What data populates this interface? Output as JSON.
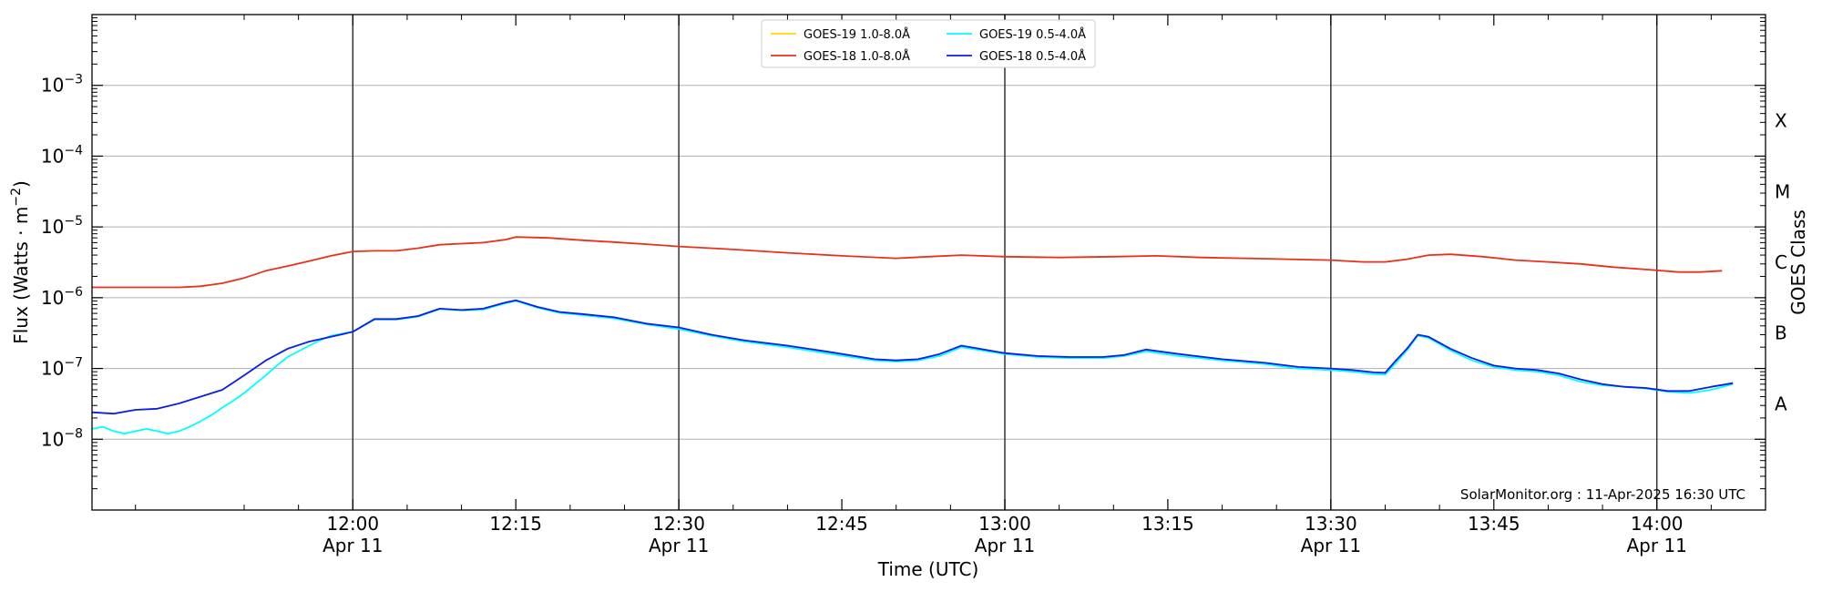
{
  "chart_data": {
    "type": "line",
    "xlabel": "Time (UTC)",
    "ylabel": "Flux (Watts · m",
    "ylabel_exp": "−2",
    "ylabel_close": ")",
    "y_scale": "log",
    "xlim": [
      "11:36",
      "14:10"
    ],
    "ylim_exp": [
      -9,
      -2
    ],
    "grid": "horizontal",
    "legend_placement": "top-center",
    "x_ticks": [
      {
        "time": "12:00",
        "label": "12:00",
        "sub": "Apr 11",
        "vline": true
      },
      {
        "time": "12:15",
        "label": "12:15",
        "sub": "",
        "vline": false
      },
      {
        "time": "12:30",
        "label": "12:30",
        "sub": "Apr 11",
        "vline": true
      },
      {
        "time": "12:45",
        "label": "12:45",
        "sub": "",
        "vline": false
      },
      {
        "time": "13:00",
        "label": "13:00",
        "sub": "Apr 11",
        "vline": true
      },
      {
        "time": "13:15",
        "label": "13:15",
        "sub": "",
        "vline": false
      },
      {
        "time": "13:30",
        "label": "13:30",
        "sub": "Apr 11",
        "vline": true
      },
      {
        "time": "13:45",
        "label": "13:45",
        "sub": "",
        "vline": false
      },
      {
        "time": "14:00",
        "label": "14:00",
        "sub": "Apr 11",
        "vline": true
      }
    ],
    "y_ticks": [
      {
        "exp": -8,
        "base": "10",
        "sup": "−8"
      },
      {
        "exp": -7,
        "base": "10",
        "sup": "−7"
      },
      {
        "exp": -6,
        "base": "10",
        "sup": "−6"
      },
      {
        "exp": -5,
        "base": "10",
        "sup": "−5"
      },
      {
        "exp": -4,
        "base": "10",
        "sup": "−4"
      },
      {
        "exp": -3,
        "base": "10",
        "sup": "−3"
      }
    ],
    "right_axis": {
      "title": "GOES Class",
      "classes": [
        {
          "label": "A",
          "exp": -8
        },
        {
          "label": "B",
          "exp": -7
        },
        {
          "label": "C",
          "exp": -6
        },
        {
          "label": "M",
          "exp": -5
        },
        {
          "label": "X",
          "exp": -4
        }
      ]
    },
    "series": [
      {
        "name": "GOES-19 1.0-8.0Å",
        "color": "#ffd700",
        "x": [],
        "y": []
      },
      {
        "name": "GOES-19 0.5-4.0Å",
        "color": "#00ffff",
        "x": [
          "11:36",
          "11:37",
          "11:38",
          "11:39",
          "11:40",
          "11:41",
          "11:42",
          "11:43",
          "11:44",
          "11:45",
          "11:46",
          "11:47",
          "11:48",
          "11:49",
          "11:50",
          "11:51",
          "11:52",
          "11:53",
          "11:54",
          "11:55",
          "11:56",
          "11:57",
          "11:58",
          "11:59",
          "12:00",
          "12:02",
          "12:04",
          "12:06",
          "12:08",
          "12:10",
          "12:12",
          "12:14",
          "12:15",
          "12:17",
          "12:19",
          "12:21",
          "12:24",
          "12:27",
          "12:30",
          "12:33",
          "12:36",
          "12:40",
          "12:44",
          "12:48",
          "12:50",
          "12:52",
          "12:54",
          "12:56",
          "13:00",
          "13:03",
          "13:06",
          "13:09",
          "13:11",
          "13:13",
          "13:16",
          "13:20",
          "13:24",
          "13:27",
          "13:30",
          "13:32",
          "13:34",
          "13:35",
          "13:36",
          "13:37",
          "13:38",
          "13:39",
          "13:41",
          "13:43",
          "13:45",
          "13:47",
          "13:49",
          "13:51",
          "13:53",
          "13:55",
          "13:57",
          "13:59",
          "14:01",
          "14:03",
          "14:05",
          "14:07"
        ],
        "y": [
          1.4e-08,
          1.5e-08,
          1.3e-08,
          1.2e-08,
          1.3e-08,
          1.4e-08,
          1.3e-08,
          1.2e-08,
          1.3e-08,
          1.5e-08,
          1.8e-08,
          2.2e-08,
          2.8e-08,
          3.5e-08,
          4.5e-08,
          6e-08,
          8e-08,
          1.1e-07,
          1.45e-07,
          1.75e-07,
          2.1e-07,
          2.5e-07,
          2.9e-07,
          3.1e-07,
          3.3e-07,
          4.9e-07,
          4.9e-07,
          5.4e-07,
          6.9e-07,
          6.6e-07,
          6.8e-07,
          8.3e-07,
          9e-07,
          7.2e-07,
          6.1e-07,
          5.7e-07,
          5.1e-07,
          4.2e-07,
          3.6e-07,
          2.9e-07,
          2.4e-07,
          2e-07,
          1.6e-07,
          1.3e-07,
          1.25e-07,
          1.3e-07,
          1.5e-07,
          2e-07,
          1.6e-07,
          1.45e-07,
          1.4e-07,
          1.4e-07,
          1.5e-07,
          1.75e-07,
          1.5e-07,
          1.3e-07,
          1.15e-07,
          1e-07,
          9.5e-08,
          9e-08,
          8.3e-08,
          8.2e-08,
          1.2e-07,
          1.8e-07,
          2.9e-07,
          2.7e-07,
          1.8e-07,
          1.3e-07,
          1.05e-07,
          9.5e-08,
          9e-08,
          8e-08,
          6.5e-08,
          5.8e-08,
          5.5e-08,
          5.2e-08,
          4.7e-08,
          4.5e-08,
          5e-08,
          6e-08
        ]
      },
      {
        "name": "GOES-18 1.0-8.0Å",
        "color": "#e8311a",
        "x": [
          "11:36",
          "11:38",
          "11:40",
          "11:42",
          "11:44",
          "11:46",
          "11:48",
          "11:50",
          "11:52",
          "11:54",
          "11:56",
          "11:58",
          "12:00",
          "12:02",
          "12:04",
          "12:06",
          "12:08",
          "12:10",
          "12:12",
          "12:14",
          "12:15",
          "12:18",
          "12:21",
          "12:24",
          "12:27",
          "12:30",
          "12:35",
          "12:40",
          "12:45",
          "12:50",
          "12:53",
          "12:56",
          "13:00",
          "13:05",
          "13:10",
          "13:14",
          "13:18",
          "13:22",
          "13:26",
          "13:30",
          "13:33",
          "13:35",
          "13:37",
          "13:39",
          "13:41",
          "13:44",
          "13:47",
          "13:50",
          "13:53",
          "13:56",
          "13:59",
          "14:02",
          "14:04",
          "14:06"
        ],
        "y": [
          1.4e-06,
          1.4e-06,
          1.4e-06,
          1.4e-06,
          1.4e-06,
          1.45e-06,
          1.6e-06,
          1.9e-06,
          2.4e-06,
          2.8e-06,
          3.3e-06,
          3.9e-06,
          4.5e-06,
          4.6e-06,
          4.6e-06,
          5e-06,
          5.6e-06,
          5.8e-06,
          6e-06,
          6.6e-06,
          7.2e-06,
          7e-06,
          6.5e-06,
          6.1e-06,
          5.7e-06,
          5.3e-06,
          4.8e-06,
          4.3e-06,
          3.9e-06,
          3.6e-06,
          3.8e-06,
          4e-06,
          3.8e-06,
          3.7e-06,
          3.8e-06,
          3.9e-06,
          3.7e-06,
          3.6e-06,
          3.5e-06,
          3.4e-06,
          3.2e-06,
          3.2e-06,
          3.5e-06,
          4e-06,
          4.1e-06,
          3.8e-06,
          3.4e-06,
          3.2e-06,
          3e-06,
          2.7e-06,
          2.5e-06,
          2.3e-06,
          2.3e-06,
          2.4e-06
        ]
      },
      {
        "name": "GOES-18 0.5-4.0Å",
        "color": "#0a1ee6",
        "x": [
          "11:36",
          "11:38",
          "11:40",
          "11:42",
          "11:44",
          "11:46",
          "11:48",
          "11:50",
          "11:52",
          "11:54",
          "11:56",
          "11:58",
          "12:00",
          "12:02",
          "12:04",
          "12:06",
          "12:08",
          "12:10",
          "12:12",
          "12:14",
          "12:15",
          "12:17",
          "12:19",
          "12:21",
          "12:24",
          "12:27",
          "12:30",
          "12:33",
          "12:36",
          "12:40",
          "12:44",
          "12:48",
          "12:50",
          "12:52",
          "12:54",
          "12:56",
          "13:00",
          "13:03",
          "13:06",
          "13:09",
          "13:11",
          "13:13",
          "13:16",
          "13:20",
          "13:24",
          "13:27",
          "13:30",
          "13:32",
          "13:34",
          "13:35",
          "13:36",
          "13:37",
          "13:38",
          "13:39",
          "13:41",
          "13:43",
          "13:45",
          "13:47",
          "13:49",
          "13:51",
          "13:53",
          "13:55",
          "13:57",
          "13:59",
          "14:01",
          "14:03",
          "14:05",
          "14:07"
        ],
        "y": [
          2.4e-08,
          2.3e-08,
          2.6e-08,
          2.7e-08,
          3.2e-08,
          4e-08,
          5e-08,
          8e-08,
          1.3e-07,
          1.9e-07,
          2.4e-07,
          2.8e-07,
          3.3e-07,
          5e-07,
          5e-07,
          5.5e-07,
          7e-07,
          6.7e-07,
          7e-07,
          8.5e-07,
          9.2e-07,
          7.4e-07,
          6.3e-07,
          5.9e-07,
          5.3e-07,
          4.3e-07,
          3.8e-07,
          3e-07,
          2.5e-07,
          2.1e-07,
          1.7e-07,
          1.35e-07,
          1.3e-07,
          1.35e-07,
          1.6e-07,
          2.1e-07,
          1.65e-07,
          1.5e-07,
          1.45e-07,
          1.45e-07,
          1.55e-07,
          1.85e-07,
          1.6e-07,
          1.35e-07,
          1.2e-07,
          1.05e-07,
          1e-07,
          9.5e-08,
          8.8e-08,
          8.7e-08,
          1.3e-07,
          1.9e-07,
          3e-07,
          2.8e-07,
          1.9e-07,
          1.4e-07,
          1.1e-07,
          1e-07,
          9.5e-08,
          8.5e-08,
          7e-08,
          6e-08,
          5.5e-08,
          5.3e-08,
          4.8e-08,
          4.8e-08,
          5.5e-08,
          6.2e-08
        ]
      }
    ],
    "watermark": "SolarMonitor.org : 11-Apr-2025 16:30 UTC"
  }
}
